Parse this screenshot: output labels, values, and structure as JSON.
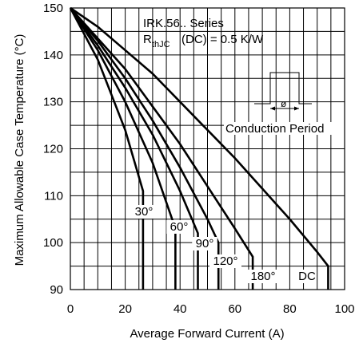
{
  "chart_data": {
    "type": "line",
    "title": "",
    "annotation_lines": [
      "IRK.56.. Series",
      "R",
      "thJC",
      "(DC) = 0.5 K/W"
    ],
    "xlabel": "Average Forward Current (A)",
    "ylabel": "Maximum Allowable Case Temperature (°C)",
    "xlim": [
      0,
      100
    ],
    "ylim": [
      90,
      150
    ],
    "xticks": [
      0,
      20,
      40,
      60,
      80,
      100
    ],
    "yticks": [
      90,
      100,
      110,
      120,
      130,
      140,
      150
    ],
    "grid": true,
    "inset_label": "Conduction Period",
    "inset_symbol": "ø",
    "series": [
      {
        "name": "30°",
        "x": [
          0,
          10,
          20,
          26.5,
          26.5
        ],
        "y": [
          150,
          139,
          124,
          111,
          90
        ]
      },
      {
        "name": "60°",
        "x": [
          0,
          10,
          20,
          30,
          38.3,
          38.3
        ],
        "y": [
          150,
          141,
          130,
          117,
          103,
          90
        ]
      },
      {
        "name": "90°",
        "x": [
          0,
          10,
          20,
          30,
          40,
          46.5,
          46.5
        ],
        "y": [
          150,
          142,
          133,
          123,
          111,
          102,
          90
        ]
      },
      {
        "name": "120°",
        "x": [
          0,
          10,
          20,
          30,
          40,
          50,
          54,
          54
        ],
        "y": [
          150,
          143,
          135,
          126,
          116,
          105,
          100,
          90
        ]
      },
      {
        "name": "180°",
        "x": [
          0,
          10,
          20,
          30,
          40,
          50,
          60,
          66.5,
          66.5
        ],
        "y": [
          150,
          143.5,
          137,
          129,
          121,
          112,
          103,
          97,
          90
        ]
      },
      {
        "name": "DC",
        "x": [
          0,
          10,
          20,
          30,
          40,
          50,
          60,
          70,
          80,
          90,
          94,
          94
        ],
        "y": [
          150,
          146,
          141,
          136,
          130,
          124,
          118,
          111.5,
          105,
          98,
          95,
          90
        ]
      }
    ]
  }
}
